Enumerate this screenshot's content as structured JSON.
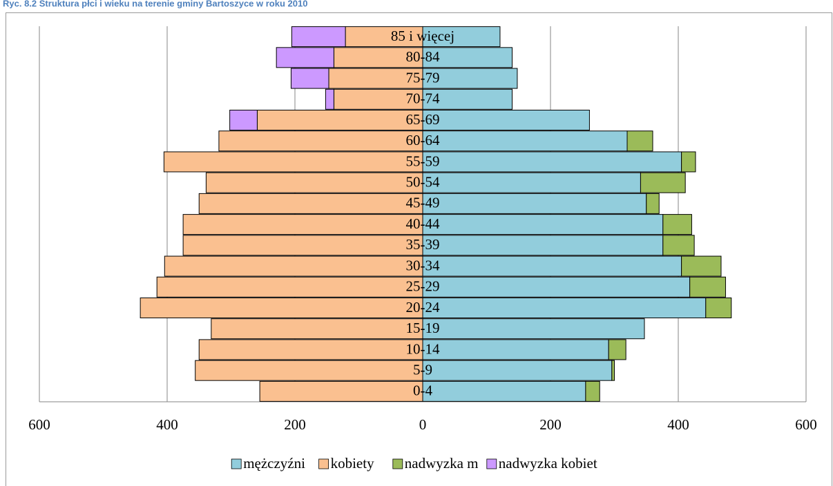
{
  "chart_data": {
    "type": "bar",
    "orientation": "horizontal",
    "stacked": true,
    "title": "Ryc. 8.2 Struktura płci i wieku na terenie gminy Bartoszyce w roku 2010",
    "categories": [
      "0-4",
      "5-9",
      "10-14",
      "15-19",
      "20-24",
      "25-29",
      "30-34",
      "35-39",
      "40-44",
      "45-49",
      "50-54",
      "55-59",
      "60-64",
      "65-69",
      "70-74",
      "75-79",
      "80-84",
      "85 i więcej"
    ],
    "series": [
      {
        "name": "mężczyźni",
        "color": "#92cddc",
        "values": [
          255,
          296,
          291,
          347,
          443,
          418,
          405,
          376,
          376,
          350,
          341,
          405,
          320,
          261,
          140,
          148,
          140,
          121
        ]
      },
      {
        "name": "kobiety",
        "color": "#fac090",
        "values": [
          -255,
          -356,
          -350,
          -331,
          -442,
          -416,
          -404,
          -375,
          -375,
          -350,
          -339,
          -405,
          -319,
          -259,
          -139,
          -147,
          -139,
          -121
        ]
      },
      {
        "name": "nadwyzka m",
        "color": "#9bbb59",
        "values": [
          22,
          4,
          27,
          null,
          40,
          56,
          62,
          49,
          45,
          20,
          70,
          22,
          40,
          null,
          null,
          null,
          null,
          null
        ]
      },
      {
        "name": "nadwyzka kobiet",
        "color": "#cc99ff",
        "values": [
          null,
          null,
          null,
          null,
          null,
          null,
          null,
          null,
          null,
          null,
          null,
          null,
          null,
          -43,
          -13,
          -59,
          -90,
          -84
        ]
      }
    ],
    "xlim": [
      -600,
      600
    ],
    "xticks": [
      {
        "value": -600,
        "label": "600"
      },
      {
        "value": -400,
        "label": "400"
      },
      {
        "value": -200,
        "label": "200"
      },
      0,
      200,
      400,
      600
    ],
    "grid": true,
    "legend": "bottom"
  }
}
